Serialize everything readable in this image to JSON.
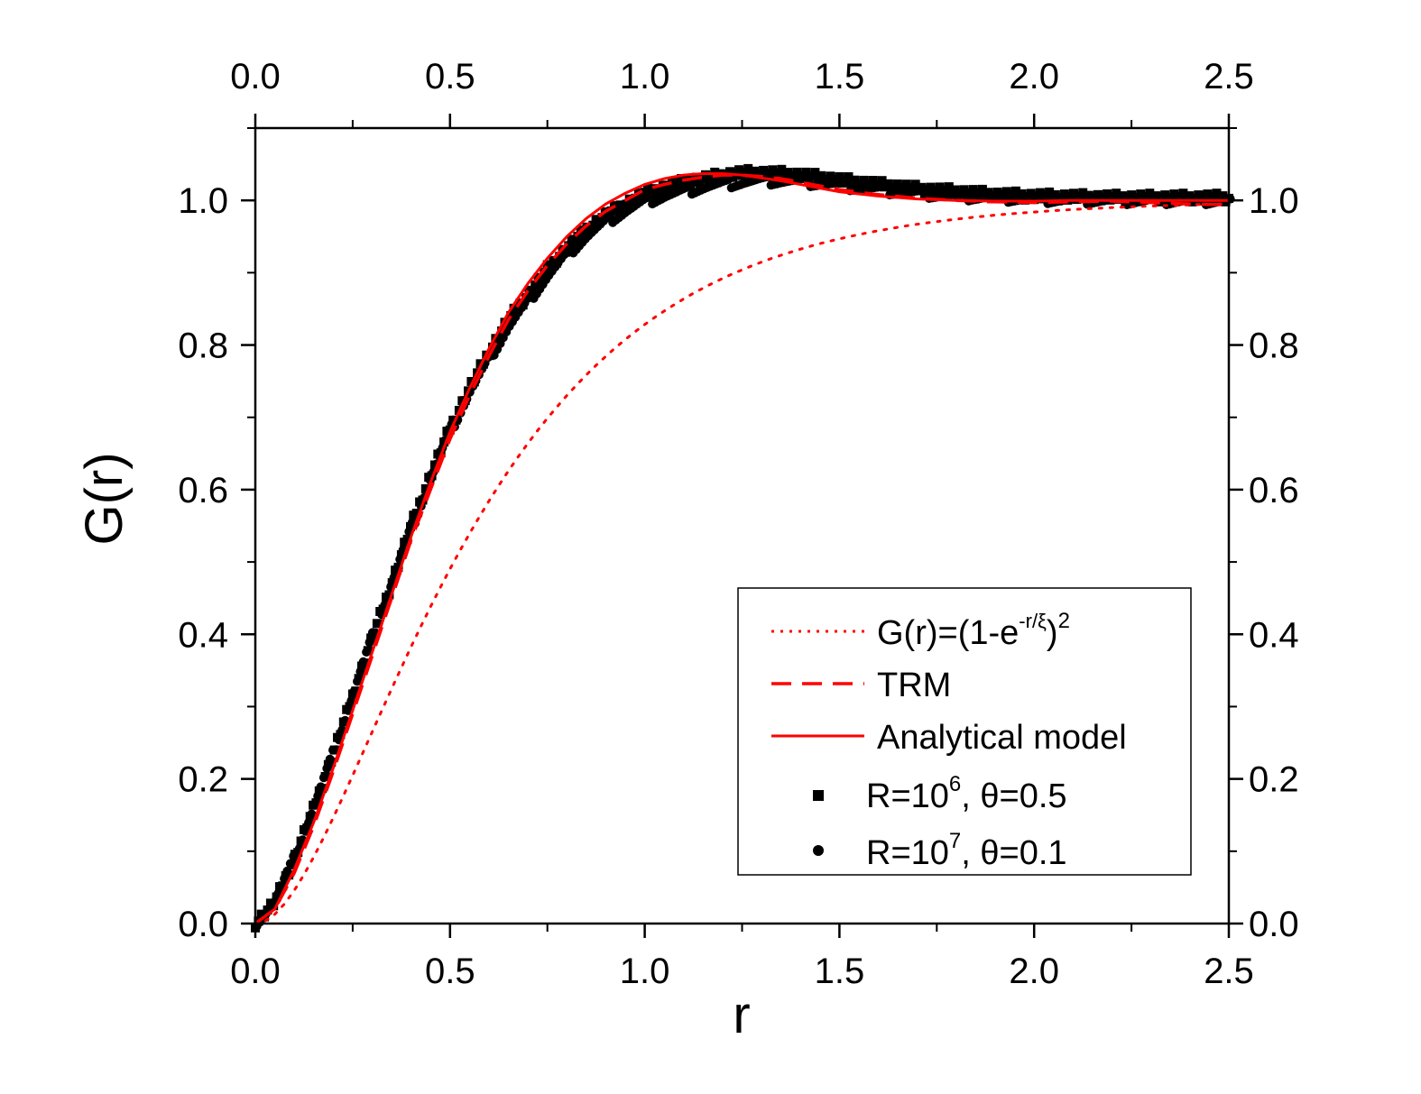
{
  "chart_data": {
    "type": "line",
    "title": "",
    "xlabel": "r",
    "ylabel": "G(r)",
    "xlim": [
      0.0,
      2.5
    ],
    "ylim": [
      0.0,
      1.1
    ],
    "xticks": [
      "0.0",
      "0.5",
      "1.0",
      "1.5",
      "2.0",
      "2.5"
    ],
    "xtick_values": [
      0.0,
      0.5,
      1.0,
      1.5,
      2.0,
      2.5
    ],
    "yticks": [
      "0.0",
      "0.2",
      "0.4",
      "0.6",
      "0.8",
      "1.0"
    ],
    "ytick_values": [
      0.0,
      0.2,
      0.4,
      0.6,
      0.8,
      1.0
    ],
    "legend_position": "lower-right",
    "colors": {
      "red": "#ff0000",
      "black": "#000000"
    },
    "series": [
      {
        "name": "exp-model",
        "style": "dotted",
        "color": "#ff0000",
        "legend": {
          "main": "G(r)=(1-e",
          "sup1": "-r/ξ",
          "mid": ")",
          "sup2": "2"
        },
        "xi": 0.415,
        "x": [],
        "y": []
      },
      {
        "name": "TRM",
        "style": "dashed",
        "color": "#ff0000",
        "legend": {
          "main": "TRM"
        },
        "x": [
          0,
          0.05,
          0.1,
          0.15,
          0.2,
          0.25,
          0.3,
          0.35,
          0.4,
          0.45,
          0.5,
          0.55,
          0.6,
          0.65,
          0.7,
          0.75,
          0.8,
          0.85,
          0.9,
          0.95,
          1.0,
          1.05,
          1.1,
          1.15,
          1.2,
          1.25,
          1.3,
          1.35,
          1.4,
          1.45,
          1.5,
          1.6,
          1.7,
          1.8,
          1.9,
          2.0,
          2.1,
          2.2,
          2.3,
          2.4,
          2.5
        ],
        "y": [
          0,
          0.02,
          0.07,
          0.135,
          0.21,
          0.29,
          0.37,
          0.45,
          0.53,
          0.6,
          0.67,
          0.73,
          0.785,
          0.835,
          0.875,
          0.91,
          0.94,
          0.965,
          0.985,
          1.0,
          1.015,
          1.022,
          1.028,
          1.032,
          1.035,
          1.035,
          1.033,
          1.03,
          1.025,
          1.02,
          1.015,
          1.008,
          1.003,
          1.0,
          0.998,
          0.997,
          0.998,
          0.999,
          0.997,
          0.995,
          0.994
        ]
      },
      {
        "name": "Analytical model",
        "style": "solid",
        "color": "#ff0000",
        "legend": {
          "main": "Analytical model"
        },
        "x": [
          0,
          0.05,
          0.1,
          0.15,
          0.2,
          0.25,
          0.3,
          0.35,
          0.4,
          0.45,
          0.5,
          0.55,
          0.6,
          0.65,
          0.7,
          0.75,
          0.8,
          0.85,
          0.9,
          0.95,
          1.0,
          1.05,
          1.1,
          1.15,
          1.2,
          1.25,
          1.3,
          1.35,
          1.4,
          1.45,
          1.5,
          1.6,
          1.7,
          1.8,
          1.9,
          2.0,
          2.1,
          2.2,
          2.3,
          2.4,
          2.5
        ],
        "y": [
          0,
          0.02,
          0.075,
          0.14,
          0.215,
          0.295,
          0.375,
          0.455,
          0.535,
          0.61,
          0.68,
          0.74,
          0.795,
          0.845,
          0.885,
          0.92,
          0.95,
          0.975,
          0.995,
          1.01,
          1.022,
          1.03,
          1.035,
          1.037,
          1.037,
          1.035,
          1.031,
          1.027,
          1.022,
          1.017,
          1.012,
          1.006,
          1.002,
          1.0,
          0.999,
          0.999,
          1.0,
          1.0,
          1.0,
          1.0,
          1.0
        ]
      },
      {
        "name": "R=10^6, theta=0.5",
        "style": "square-markers",
        "color": "#000000",
        "legend": {
          "main": "R=10",
          "sup": "6",
          "rest": ", θ=0.5"
        },
        "x": [
          0,
          0.05,
          0.1,
          0.15,
          0.2,
          0.25,
          0.3,
          0.35,
          0.4,
          0.45,
          0.5,
          0.55,
          0.6,
          0.65,
          0.7,
          0.75,
          0.8,
          0.85,
          0.9,
          0.95,
          1.0,
          1.05,
          1.1,
          1.15,
          1.2,
          1.25,
          1.3,
          1.35,
          1.4,
          1.45,
          1.5,
          1.6,
          1.7,
          1.8,
          1.9,
          2.0,
          2.1,
          2.2,
          2.3,
          2.4,
          2.5
        ],
        "y": [
          0,
          0.03,
          0.09,
          0.16,
          0.235,
          0.315,
          0.395,
          0.47,
          0.55,
          0.62,
          0.685,
          0.74,
          0.79,
          0.835,
          0.87,
          0.905,
          0.935,
          0.96,
          0.98,
          0.995,
          1.01,
          1.018,
          1.025,
          1.03,
          1.035,
          1.038,
          1.038,
          1.037,
          1.035,
          1.032,
          1.028,
          1.022,
          1.016,
          1.012,
          1.008,
          1.006,
          1.005,
          1.004,
          1.004,
          1.004,
          1.004
        ]
      },
      {
        "name": "R=10^7, theta=0.1",
        "style": "circle-markers",
        "color": "#000000",
        "legend": {
          "main": "R=10",
          "sup": "7",
          "rest": ", θ=0.1"
        },
        "x": [
          0,
          0.05,
          0.1,
          0.15,
          0.2,
          0.25,
          0.3,
          0.35,
          0.4,
          0.45,
          0.5,
          0.55,
          0.6,
          0.65,
          0.7,
          0.75,
          0.8,
          0.85,
          0.9,
          0.95,
          1.0,
          1.05,
          1.1,
          1.15,
          1.2,
          1.25,
          1.3,
          1.35,
          1.4,
          1.45,
          1.5,
          1.6,
          1.7,
          1.8,
          1.9,
          2.0,
          2.1,
          2.2,
          2.3,
          2.4,
          2.5
        ],
        "y": [
          0,
          0.03,
          0.09,
          0.16,
          0.235,
          0.315,
          0.395,
          0.47,
          0.545,
          0.615,
          0.68,
          0.735,
          0.78,
          0.825,
          0.86,
          0.895,
          0.925,
          0.95,
          0.97,
          0.985,
          0.998,
          1.006,
          1.012,
          1.018,
          1.022,
          1.025,
          1.027,
          1.027,
          1.026,
          1.024,
          1.021,
          1.015,
          1.01,
          1.006,
          1.004,
          1.002,
          1.001,
          1.0,
          1.0,
          1.0,
          1.0
        ]
      }
    ]
  }
}
